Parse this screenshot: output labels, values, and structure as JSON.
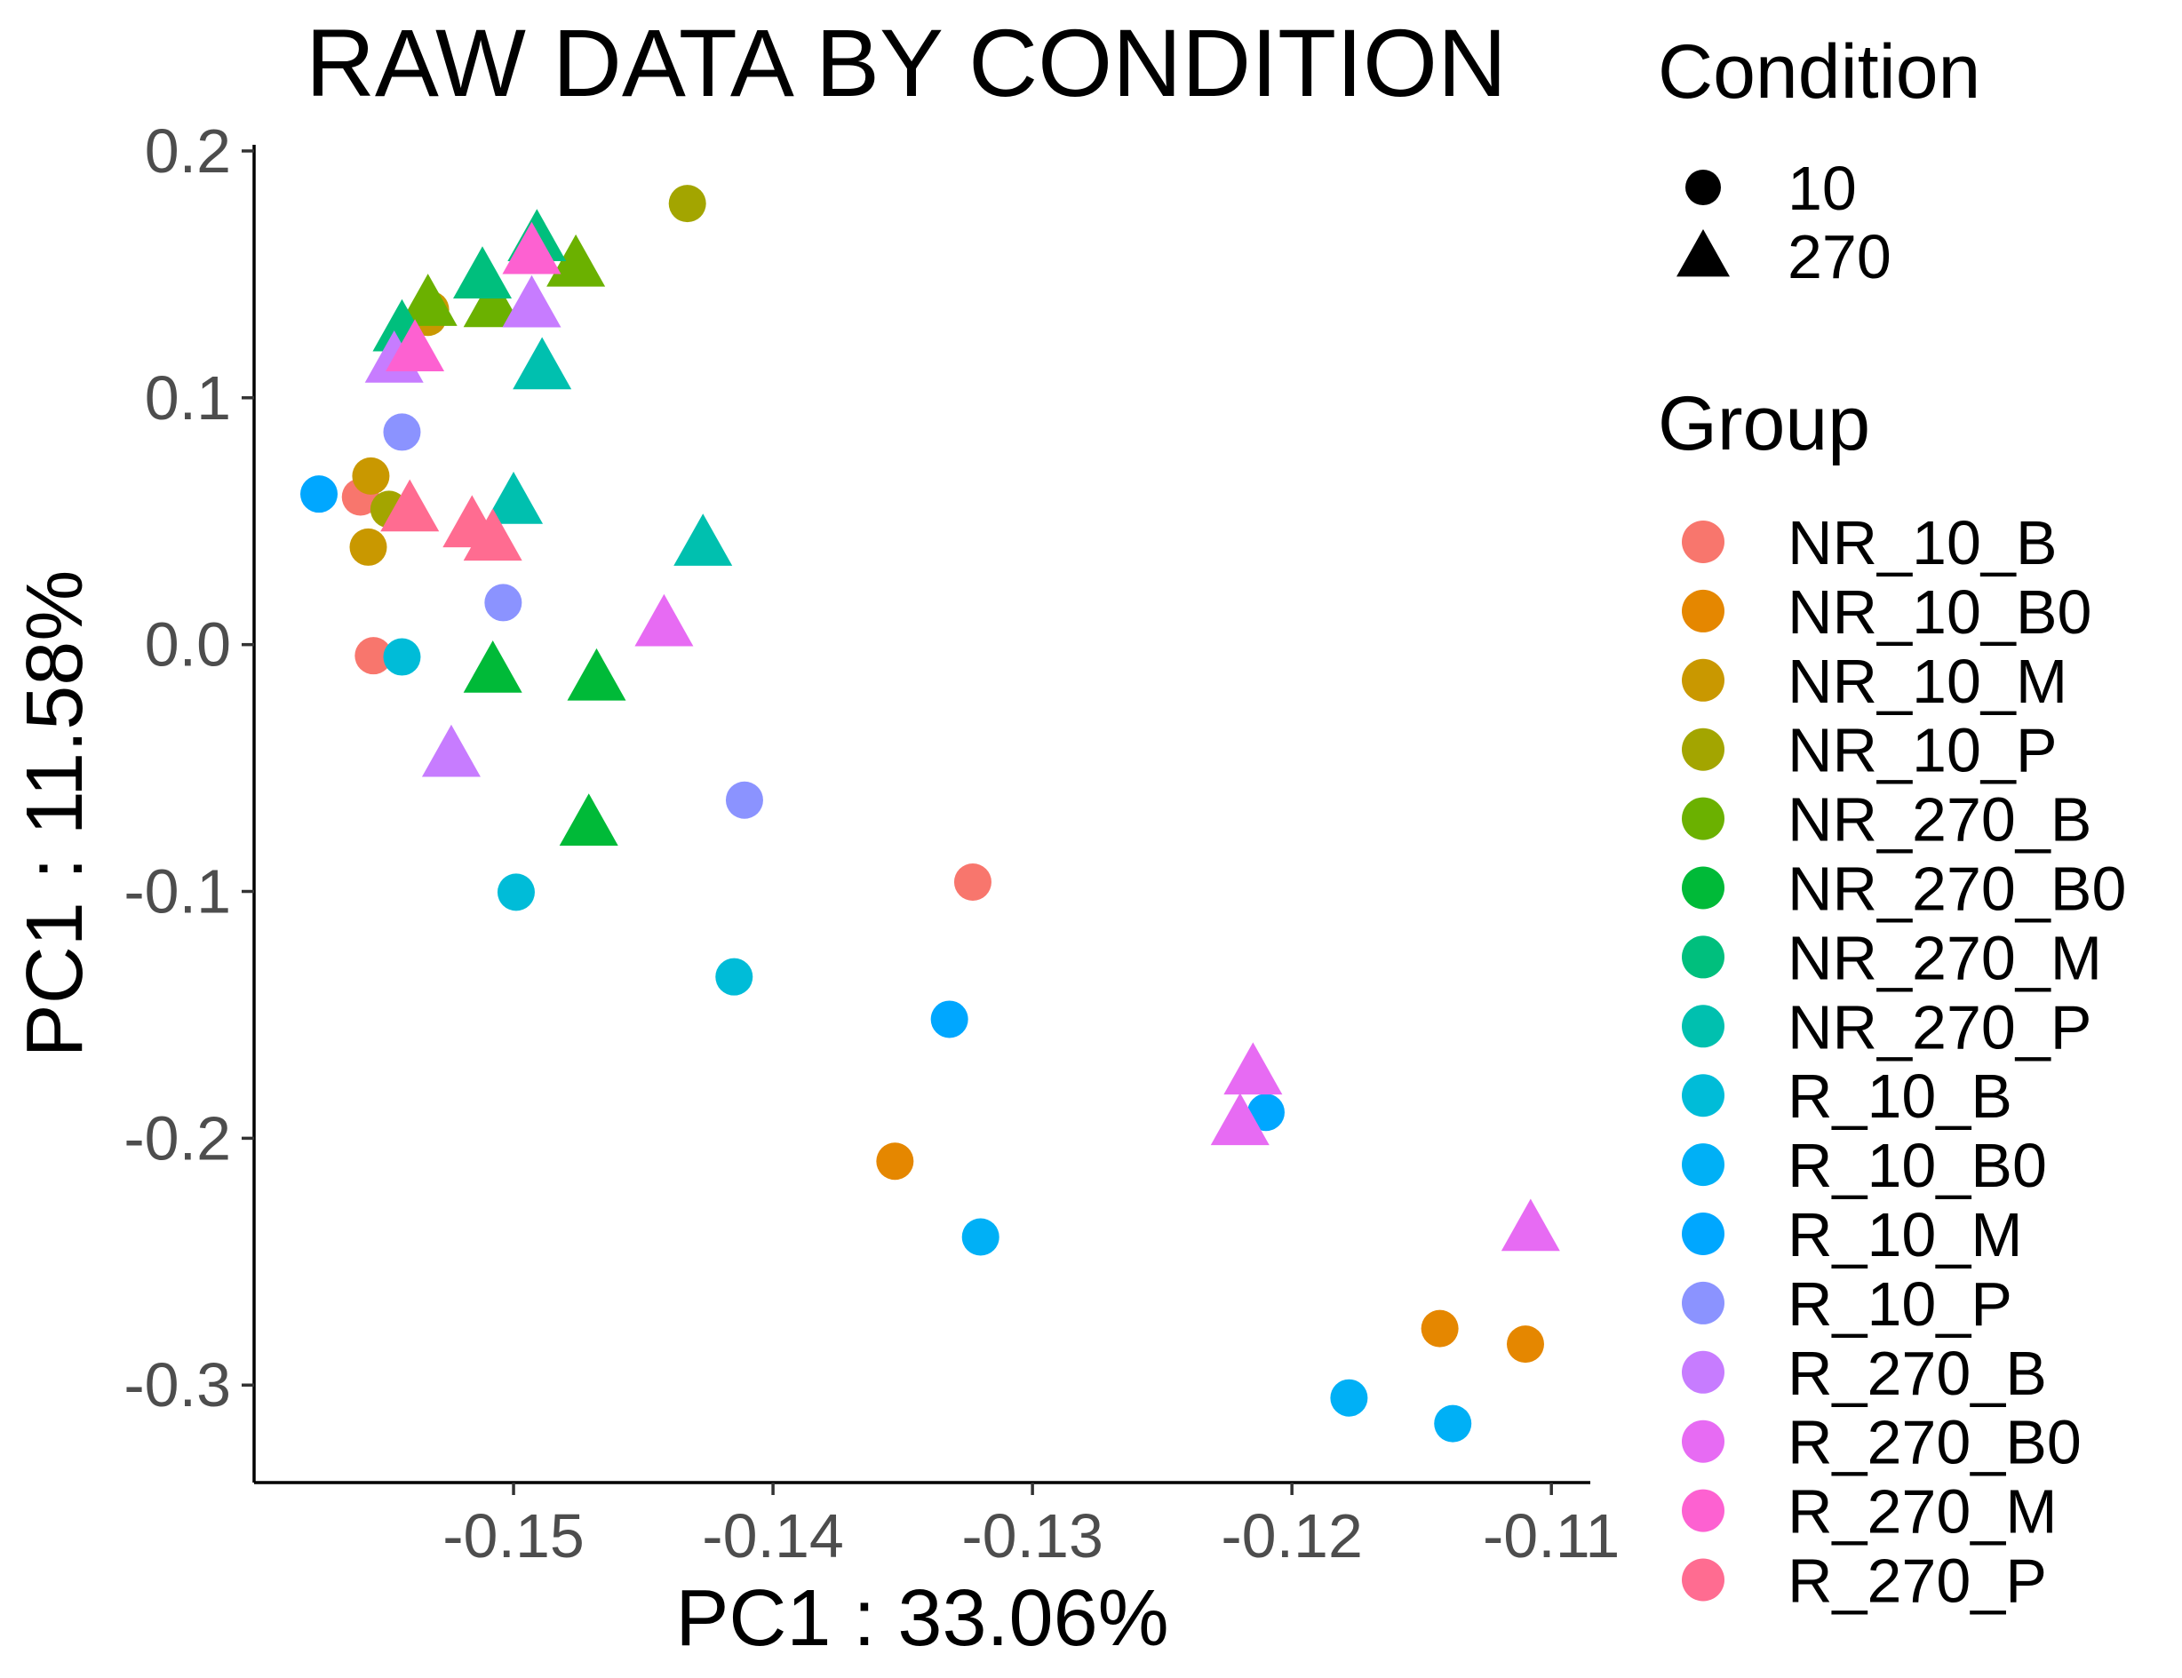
{
  "chart_data": {
    "type": "scatter",
    "title": "RAW DATA BY CONDITION",
    "xlabel": "PC1 : 33.06%",
    "ylabel": "PC1 : 11.58%",
    "xlim": [
      -0.16,
      -0.1085
    ],
    "ylim": [
      -0.3395,
      0.2025
    ],
    "x_ticks": [
      -0.15,
      -0.14,
      -0.13,
      -0.12,
      -0.11
    ],
    "x_tick_labels": [
      "-0.15",
      "-0.14",
      "-0.13",
      "-0.12",
      "-0.11"
    ],
    "y_ticks": [
      -0.3,
      -0.2,
      -0.1,
      0.0,
      0.1,
      0.2
    ],
    "y_tick_labels": [
      "-0.3",
      "-0.2",
      "-0.1",
      "0.0",
      "0.1",
      "0.2"
    ],
    "grid": false,
    "legend_position": "right",
    "shape_legend": {
      "title": "Condition",
      "entries": [
        {
          "label": "10",
          "shape": "circle"
        },
        {
          "label": "270",
          "shape": "triangle"
        }
      ]
    },
    "color_legend": {
      "title": "Group",
      "entries": [
        {
          "label": "NR_10_B",
          "color": "#F8766D"
        },
        {
          "label": "NR_10_B0",
          "color": "#E58700"
        },
        {
          "label": "NR_10_M",
          "color": "#C99800"
        },
        {
          "label": "NR_10_P",
          "color": "#A3A500"
        },
        {
          "label": "NR_270_B",
          "color": "#6BB100"
        },
        {
          "label": "NR_270_B0",
          "color": "#00BA38"
        },
        {
          "label": "NR_270_M",
          "color": "#00BF7D"
        },
        {
          "label": "NR_270_P",
          "color": "#00C0AF"
        },
        {
          "label": "R_10_B",
          "color": "#00BCD8"
        },
        {
          "label": "R_10_B0",
          "color": "#00B0F6"
        },
        {
          "label": "R_10_M",
          "color": "#00A7FF"
        },
        {
          "label": "R_10_P",
          "color": "#8B93FF"
        },
        {
          "label": "R_270_B",
          "color": "#C77CFF"
        },
        {
          "label": "R_270_B0",
          "color": "#E76BF3"
        },
        {
          "label": "R_270_M",
          "color": "#FD61D1"
        },
        {
          "label": "R_270_P",
          "color": "#FF6C91"
        }
      ]
    },
    "points": [
      {
        "group": "NR_10_B",
        "condition": "10",
        "x": -0.1559,
        "y": 0.0598
      },
      {
        "group": "NR_10_B",
        "condition": "10",
        "x": -0.1554,
        "y": -0.0045
      },
      {
        "group": "NR_10_B",
        "condition": "10",
        "x": -0.1323,
        "y": -0.0962
      },
      {
        "group": "NR_10_B0",
        "condition": "10",
        "x": -0.1353,
        "y": -0.2093
      },
      {
        "group": "NR_10_B0",
        "condition": "10",
        "x": -0.1143,
        "y": -0.2771
      },
      {
        "group": "NR_10_B0",
        "condition": "10",
        "x": -0.111,
        "y": -0.2834
      },
      {
        "group": "NR_10_M",
        "condition": "10",
        "x": -0.1555,
        "y": 0.0683
      },
      {
        "group": "NR_10_M",
        "condition": "10",
        "x": -0.1556,
        "y": 0.0395
      },
      {
        "group": "NR_10_M",
        "condition": "10",
        "x": -0.1532,
        "y": 0.1357
      },
      {
        "group": "NR_10_M",
        "condition": "10",
        "x": -0.1533,
        "y": 0.1326
      },
      {
        "group": "NR_10_P",
        "condition": "10",
        "x": -0.1548,
        "y": 0.0548
      },
      {
        "group": "NR_10_P",
        "condition": "10",
        "x": -0.1433,
        "y": 0.1787
      },
      {
        "group": "NR_270_B",
        "condition": "270",
        "x": -0.1533,
        "y": 0.1384
      },
      {
        "group": "NR_270_B",
        "condition": "270",
        "x": -0.1508,
        "y": 0.1379
      },
      {
        "group": "NR_270_B",
        "condition": "270",
        "x": -0.1476,
        "y": 0.1543
      },
      {
        "group": "NR_270_B0",
        "condition": "270",
        "x": -0.1508,
        "y": -0.0102
      },
      {
        "group": "NR_270_B0",
        "condition": "270",
        "x": -0.1468,
        "y": -0.0134
      },
      {
        "group": "NR_270_B0",
        "condition": "270",
        "x": -0.1471,
        "y": -0.0722
      },
      {
        "group": "NR_270_M",
        "condition": "270",
        "x": -0.1543,
        "y": 0.1281
      },
      {
        "group": "NR_270_M",
        "condition": "270",
        "x": -0.1512,
        "y": 0.1495
      },
      {
        "group": "NR_270_M",
        "condition": "270",
        "x": -0.1491,
        "y": 0.1646
      },
      {
        "group": "NR_270_P",
        "condition": "270",
        "x": -0.1489,
        "y": 0.1127
      },
      {
        "group": "NR_270_P",
        "condition": "270",
        "x": -0.15,
        "y": 0.0582
      },
      {
        "group": "NR_270_P",
        "condition": "270",
        "x": -0.1427,
        "y": 0.0412
      },
      {
        "group": "R_10_B",
        "condition": "10",
        "x": -0.1543,
        "y": -0.005
      },
      {
        "group": "R_10_B",
        "condition": "10",
        "x": -0.1499,
        "y": -0.1003
      },
      {
        "group": "R_10_B",
        "condition": "10",
        "x": -0.1415,
        "y": -0.1346
      },
      {
        "group": "R_10_B0",
        "condition": "10",
        "x": -0.132,
        "y": -0.24
      },
      {
        "group": "R_10_B0",
        "condition": "10",
        "x": -0.1178,
        "y": -0.3052
      },
      {
        "group": "R_10_B0",
        "condition": "10",
        "x": -0.1138,
        "y": -0.3156
      },
      {
        "group": "R_10_M",
        "condition": "10",
        "x": -0.1575,
        "y": 0.061
      },
      {
        "group": "R_10_M",
        "condition": "10",
        "x": -0.1332,
        "y": -0.1518
      },
      {
        "group": "R_10_M",
        "condition": "10",
        "x": -0.121,
        "y": -0.1895
      },
      {
        "group": "R_10_P",
        "condition": "10",
        "x": -0.1543,
        "y": 0.0861
      },
      {
        "group": "R_10_P",
        "condition": "10",
        "x": -0.1504,
        "y": 0.017
      },
      {
        "group": "R_10_P",
        "condition": "10",
        "x": -0.1411,
        "y": -0.063
      },
      {
        "group": "R_270_B",
        "condition": "270",
        "x": -0.1546,
        "y": 0.1154
      },
      {
        "group": "R_270_B",
        "condition": "270",
        "x": -0.1493,
        "y": 0.1378
      },
      {
        "group": "R_270_B",
        "condition": "270",
        "x": -0.1524,
        "y": -0.0443
      },
      {
        "group": "R_270_B0",
        "condition": "270",
        "x": -0.1442,
        "y": 0.0086
      },
      {
        "group": "R_270_B0",
        "condition": "270",
        "x": -0.1215,
        "y": -0.173
      },
      {
        "group": "R_270_B0",
        "condition": "270",
        "x": -0.122,
        "y": -0.1935
      },
      {
        "group": "R_270_B0",
        "condition": "270",
        "x": -0.1108,
        "y": -0.2364
      },
      {
        "group": "R_270_M",
        "condition": "270",
        "x": -0.1493,
        "y": 0.1594
      },
      {
        "group": "R_270_M",
        "condition": "270",
        "x": -0.1538,
        "y": 0.12
      },
      {
        "group": "R_270_P",
        "condition": "270",
        "x": -0.154,
        "y": 0.0551
      },
      {
        "group": "R_270_P",
        "condition": "270",
        "x": -0.1516,
        "y": 0.0487
      },
      {
        "group": "R_270_P",
        "condition": "270",
        "x": -0.1508,
        "y": 0.0433
      }
    ]
  }
}
